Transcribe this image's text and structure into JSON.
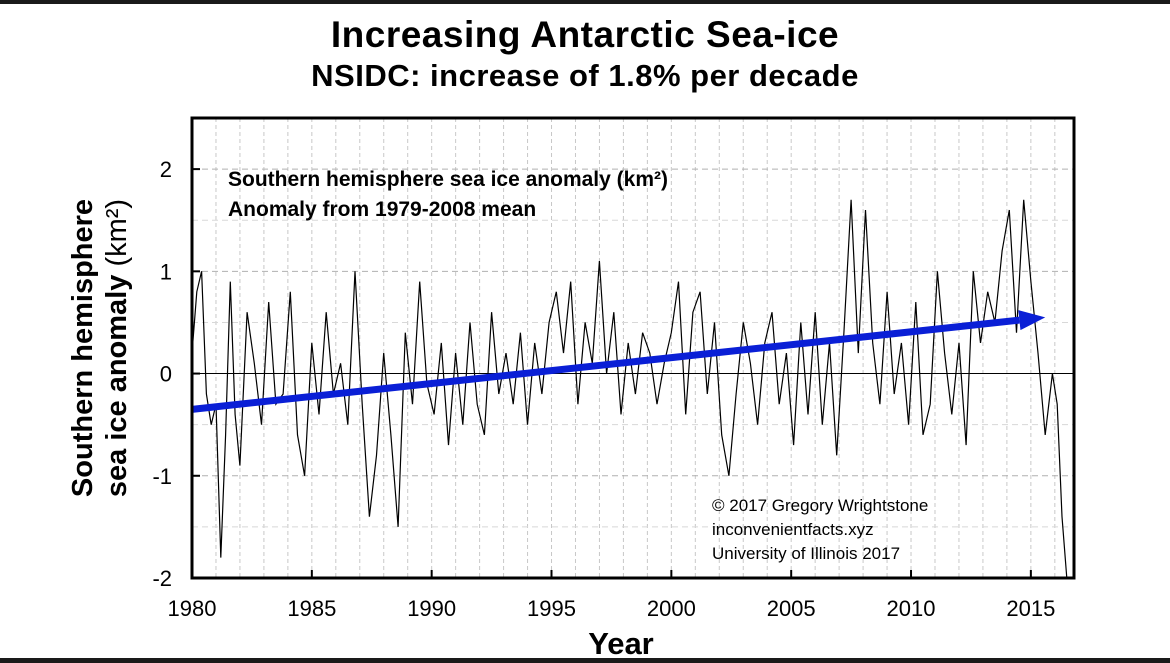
{
  "chart_data": {
    "type": "line",
    "title": "Increasing Antarctic Sea-ice",
    "subtitle": "NSIDC: increase of 1.8% per decade",
    "xlabel": "Year",
    "ylabel_line1": "Southern hemisphere",
    "ylabel_line2": "sea ice anomaly",
    "ylabel_unit": "(km²)",
    "xlim": [
      1980,
      2016.8
    ],
    "ylim": [
      -2,
      2.5
    ],
    "x_ticks": [
      1980,
      1985,
      1990,
      1995,
      2000,
      2005,
      2010,
      2015
    ],
    "x_tick_labels": [
      "1980",
      "1985",
      "1990",
      "1995",
      "2000",
      "2005",
      "2010",
      "2015"
    ],
    "y_ticks": [
      -2,
      -1,
      0,
      1,
      2
    ],
    "y_tick_labels": [
      "-2",
      "-1",
      "0",
      "1",
      "2"
    ],
    "grid": true,
    "annotation_line1": "Southern hemisphere sea ice anomaly (km²)",
    "annotation_line2": "Anomaly from 1979-2008 mean",
    "credits": [
      "© 2017 Gregory Wrightstone",
      "inconvenientfacts.xyz",
      "University of Illinois 2017"
    ],
    "series": [
      {
        "color": "#000000",
        "x": [
          1980.0,
          1980.2,
          1980.4,
          1980.6,
          1980.8,
          1981.0,
          1981.2,
          1981.4,
          1981.6,
          1981.8,
          1982.0,
          1982.3,
          1982.6,
          1982.9,
          1983.2,
          1983.5,
          1983.8,
          1984.1,
          1984.4,
          1984.7,
          1985.0,
          1985.3,
          1985.6,
          1985.9,
          1986.2,
          1986.5,
          1986.8,
          1987.1,
          1987.4,
          1987.7,
          1988.0,
          1988.3,
          1988.6,
          1988.9,
          1989.2,
          1989.5,
          1989.8,
          1990.1,
          1990.4,
          1990.7,
          1991.0,
          1991.3,
          1991.6,
          1991.9,
          1992.2,
          1992.5,
          1992.8,
          1993.1,
          1993.4,
          1993.7,
          1994.0,
          1994.3,
          1994.6,
          1994.9,
          1995.2,
          1995.5,
          1995.8,
          1996.1,
          1996.4,
          1996.7,
          1997.0,
          1997.3,
          1997.6,
          1997.9,
          1998.2,
          1998.5,
          1998.8,
          1999.1,
          1999.4,
          1999.7,
          2000.0,
          2000.3,
          2000.6,
          2000.9,
          2001.2,
          2001.5,
          2001.8,
          2002.1,
          2002.4,
          2002.7,
          2003.0,
          2003.3,
          2003.6,
          2003.9,
          2004.2,
          2004.5,
          2004.8,
          2005.1,
          2005.4,
          2005.7,
          2006.0,
          2006.3,
          2006.6,
          2006.9,
          2007.2,
          2007.5,
          2007.8,
          2008.1,
          2008.4,
          2008.7,
          2009.0,
          2009.3,
          2009.6,
          2009.9,
          2010.2,
          2010.5,
          2010.8,
          2011.1,
          2011.4,
          2011.7,
          2012.0,
          2012.3,
          2012.6,
          2012.9,
          2013.2,
          2013.5,
          2013.8,
          2014.1,
          2014.4,
          2014.7,
          2015.0,
          2015.3,
          2015.6,
          2015.9,
          2016.1,
          2016.3,
          2016.5
        ],
        "y": [
          0.2,
          0.8,
          1.0,
          -0.2,
          -0.5,
          -0.3,
          -1.8,
          -0.6,
          0.9,
          -0.4,
          -0.9,
          0.6,
          0.1,
          -0.5,
          0.7,
          -0.3,
          -0.2,
          0.8,
          -0.6,
          -1.0,
          0.3,
          -0.4,
          0.6,
          -0.2,
          0.1,
          -0.5,
          1.0,
          -0.3,
          -1.4,
          -0.8,
          0.2,
          -0.6,
          -1.5,
          0.4,
          -0.3,
          0.9,
          -0.1,
          -0.4,
          0.3,
          -0.7,
          0.2,
          -0.5,
          0.5,
          -0.3,
          -0.6,
          0.6,
          -0.2,
          0.2,
          -0.3,
          0.4,
          -0.5,
          0.3,
          -0.2,
          0.5,
          0.8,
          0.2,
          0.9,
          -0.3,
          0.5,
          0.1,
          1.1,
          0.0,
          0.6,
          -0.4,
          0.3,
          -0.2,
          0.4,
          0.2,
          -0.3,
          0.1,
          0.4,
          0.9,
          -0.4,
          0.6,
          0.8,
          -0.2,
          0.5,
          -0.6,
          -1.0,
          -0.2,
          0.5,
          0.1,
          -0.5,
          0.3,
          0.6,
          -0.3,
          0.2,
          -0.7,
          0.5,
          -0.4,
          0.6,
          -0.5,
          0.3,
          -0.8,
          0.4,
          1.7,
          0.2,
          1.6,
          0.3,
          -0.3,
          0.8,
          -0.2,
          0.3,
          -0.5,
          0.7,
          -0.6,
          -0.3,
          1.0,
          0.2,
          -0.4,
          0.3,
          -0.7,
          1.0,
          0.3,
          0.8,
          0.5,
          1.2,
          1.6,
          0.4,
          1.7,
          0.9,
          0.2,
          -0.6,
          0.0,
          -0.3,
          -1.4,
          -2.0
        ]
      }
    ],
    "trend": {
      "color": "#0a1fd6",
      "x": [
        1980,
        2015.6
      ],
      "y": [
        -0.35,
        0.55
      ]
    }
  }
}
